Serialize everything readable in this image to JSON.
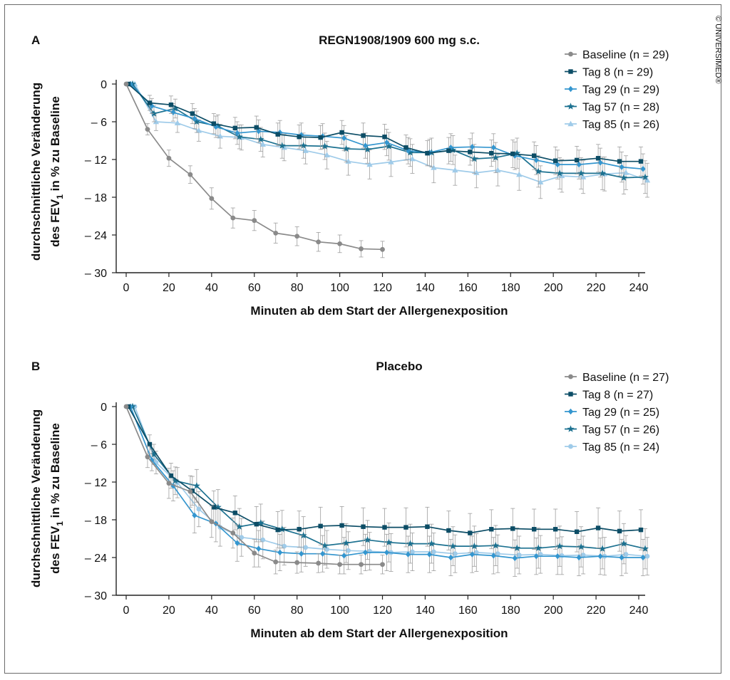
{
  "copyright": "© UNIVERSIMED®",
  "styles": {
    "colors": {
      "baseline": "#8a8a8a",
      "tag8": "#0c4d66",
      "tag29": "#3496cf",
      "tag57": "#1c7190",
      "tag85": "#9fcbe9",
      "error": "#9a9a9a",
      "axis": "#222222"
    }
  },
  "chart_data": [
    {
      "type": "line",
      "panel_label": "A",
      "title": "REGN1908/1909 600 mg s.c.",
      "xlabel": "Minuten ab dem Start der Allergenexposition",
      "ylabel_line1": "durchschnittliche Veränderung",
      "ylabel_line2_pre": "des FEV",
      "ylabel_line2_sub": "1",
      "ylabel_line2_post": " in % zu Baseline",
      "xlim": [
        0,
        242
      ],
      "ylim": [
        -30,
        0
      ],
      "xticks": [
        0,
        20,
        40,
        60,
        80,
        100,
        120,
        140,
        160,
        180,
        200,
        220,
        240
      ],
      "yticks": [
        0,
        -6,
        -12,
        -18,
        -24,
        -30
      ],
      "ytick_labels": [
        "0",
        "– 6",
        "– 12",
        "– 18",
        "– 24",
        "– 30"
      ],
      "legend_position": "top-right",
      "series": [
        {
          "name": "Baseline (n = 29)",
          "color_key": "baseline",
          "marker": "circle",
          "x": [
            0,
            10,
            20,
            30,
            40,
            50,
            60,
            70,
            80,
            90,
            100,
            110,
            120
          ],
          "y": [
            0,
            -7.2,
            -11.8,
            -14.4,
            -18.2,
            -21.3,
            -21.7,
            -23.7,
            -24.2,
            -25.1,
            -25.4,
            -26.2,
            -26.3
          ],
          "err": [
            0,
            0.9,
            1.3,
            1.4,
            1.7,
            1.6,
            1.6,
            1.6,
            1.5,
            1.5,
            1.4,
            1.3,
            1.3
          ]
        },
        {
          "name": "Tag 8 (n = 29)",
          "color_key": "tag8",
          "marker": "square",
          "x": [
            1,
            11,
            21,
            31,
            41,
            51,
            61,
            71,
            81,
            91,
            101,
            111,
            121,
            131,
            141,
            151,
            161,
            171,
            181,
            191,
            201,
            211,
            221,
            231,
            241
          ],
          "y": [
            0,
            -3.0,
            -3.3,
            -4.7,
            -6.3,
            -7.0,
            -6.9,
            -8.0,
            -8.4,
            -8.5,
            -7.7,
            -8.2,
            -8.4,
            -10.1,
            -11.0,
            -10.6,
            -10.8,
            -11.0,
            -11.1,
            -11.4,
            -12.2,
            -12.1,
            -11.8,
            -12.3,
            -12.3
          ],
          "err": [
            0,
            1.2,
            1.4,
            1.6,
            1.6,
            1.7,
            1.8,
            1.8,
            1.9,
            1.9,
            1.9,
            2.0,
            2.0,
            2.0,
            2.0,
            2.1,
            2.1,
            2.1,
            2.2,
            2.2,
            2.2,
            2.2,
            2.2,
            2.3,
            2.3
          ]
        },
        {
          "name": "Tag 29 (n = 29)",
          "color_key": "tag29",
          "marker": "diamond",
          "x": [
            2,
            12,
            22,
            32,
            42,
            52,
            62,
            72,
            82,
            92,
            102,
            112,
            122,
            132,
            142,
            152,
            162,
            172,
            182,
            192,
            202,
            212,
            222,
            232,
            242
          ],
          "y": [
            0,
            -3.5,
            -4.5,
            -5.5,
            -6.8,
            -7.8,
            -7.5,
            -7.7,
            -8.1,
            -8.3,
            -8.6,
            -9.8,
            -9.3,
            -10.6,
            -10.9,
            -10.1,
            -10.0,
            -10.1,
            -11.4,
            -12.1,
            -12.8,
            -12.8,
            -12.5,
            -13.2,
            -13.5
          ],
          "err": [
            0,
            1.2,
            1.4,
            1.6,
            1.7,
            1.8,
            1.8,
            1.9,
            1.9,
            2.0,
            2.0,
            2.0,
            2.1,
            2.1,
            2.1,
            2.2,
            2.2,
            2.2,
            2.2,
            2.3,
            2.3,
            2.3,
            2.3,
            2.4,
            2.4
          ]
        },
        {
          "name": "Tag 57 (n = 28)",
          "color_key": "tag57",
          "marker": "star",
          "x": [
            3,
            13,
            23,
            33,
            43,
            53,
            63,
            73,
            83,
            93,
            103,
            113,
            123,
            133,
            143,
            153,
            163,
            173,
            183,
            193,
            203,
            213,
            223,
            233,
            243
          ],
          "y": [
            0,
            -4.7,
            -3.9,
            -6.0,
            -6.7,
            -8.4,
            -8.8,
            -9.8,
            -9.8,
            -9.9,
            -10.3,
            -10.4,
            -9.9,
            -10.9,
            -10.9,
            -10.5,
            -11.9,
            -11.7,
            -11.0,
            -13.9,
            -14.2,
            -14.2,
            -14.2,
            -14.9,
            -14.8
          ],
          "err": [
            0,
            1.3,
            1.5,
            1.7,
            1.8,
            1.9,
            1.9,
            2.0,
            2.0,
            2.1,
            2.1,
            2.2,
            2.2,
            2.2,
            2.3,
            2.3,
            2.3,
            2.4,
            2.4,
            2.5,
            2.5,
            2.5,
            2.6,
            2.6,
            2.6
          ]
        },
        {
          "name": "Tag 85 (n = 26)",
          "color_key": "tag85",
          "marker": "triangle",
          "x": [
            4,
            14,
            24,
            34,
            44,
            54,
            64,
            74,
            84,
            94,
            104,
            114,
            124,
            134,
            144,
            154,
            164,
            174,
            184,
            194,
            204,
            214,
            224,
            234,
            244
          ],
          "y": [
            0,
            -6.0,
            -6.2,
            -7.4,
            -8.3,
            -8.5,
            -9.6,
            -10.1,
            -10.6,
            -11.3,
            -12.3,
            -12.8,
            -12.4,
            -11.9,
            -13.3,
            -13.7,
            -14.1,
            -13.7,
            -14.4,
            -15.6,
            -14.6,
            -14.8,
            -14.3,
            -14.1,
            -15.3
          ],
          "err": [
            0,
            1.4,
            1.5,
            1.7,
            1.9,
            2.0,
            2.0,
            2.1,
            2.1,
            2.2,
            2.2,
            2.3,
            2.3,
            2.3,
            2.4,
            2.4,
            2.4,
            2.5,
            2.5,
            2.6,
            2.6,
            2.6,
            2.7,
            2.7,
            2.7
          ]
        }
      ]
    },
    {
      "type": "line",
      "panel_label": "B",
      "title": "Placebo",
      "xlabel": "Minuten ab dem Start der Allergenexposition",
      "ylabel_line1": "durchschnittliche Veränderung",
      "ylabel_line2_pre": "des FEV",
      "ylabel_line2_sub": "1",
      "ylabel_line2_post": " in % zu Baseline",
      "xlim": [
        0,
        242
      ],
      "ylim": [
        -30,
        0
      ],
      "xticks": [
        0,
        20,
        40,
        60,
        80,
        100,
        120,
        140,
        160,
        180,
        200,
        220,
        240
      ],
      "yticks": [
        0,
        -6,
        -12,
        -18,
        -24,
        -30
      ],
      "ytick_labels": [
        "0",
        "– 6",
        "– 12",
        "– 18",
        "– 24",
        "– 30"
      ],
      "legend_position": "top-right",
      "series": [
        {
          "name": "Baseline (n = 27)",
          "color_key": "baseline",
          "marker": "circle",
          "x": [
            0,
            10,
            20,
            30,
            40,
            50,
            60,
            70,
            80,
            90,
            100,
            110,
            120
          ],
          "y": [
            0,
            -8.0,
            -12.2,
            -13.5,
            -18.3,
            -20.1,
            -23.3,
            -24.7,
            -24.8,
            -24.9,
            -25.1,
            -25.1,
            -25.1
          ],
          "err": [
            0,
            1.7,
            2.4,
            2.5,
            2.5,
            2.4,
            2.2,
            1.9,
            1.7,
            1.5,
            1.5,
            1.5,
            1.5
          ]
        },
        {
          "name": "Tag 8 (n = 27)",
          "color_key": "tag8",
          "marker": "square",
          "x": [
            1,
            11,
            21,
            31,
            41,
            51,
            61,
            71,
            81,
            91,
            101,
            111,
            121,
            131,
            141,
            151,
            161,
            171,
            181,
            191,
            201,
            211,
            221,
            231,
            241
          ],
          "y": [
            0,
            -6.0,
            -11.0,
            -13.4,
            -16.0,
            -16.9,
            -18.7,
            -19.6,
            -19.5,
            -19.0,
            -18.9,
            -19.1,
            -19.2,
            -19.2,
            -19.1,
            -19.7,
            -20.1,
            -19.5,
            -19.4,
            -19.5,
            -19.5,
            -19.9,
            -19.3,
            -19.8,
            -19.6
          ],
          "err": [
            0,
            1.5,
            2.0,
            2.3,
            2.6,
            2.7,
            2.8,
            2.9,
            2.9,
            3.0,
            3.0,
            3.0,
            3.0,
            3.1,
            3.1,
            3.1,
            3.1,
            3.1,
            3.2,
            3.2,
            3.2,
            3.2,
            3.2,
            3.2,
            3.2
          ]
        },
        {
          "name": "Tag 29 (n = 25)",
          "color_key": "tag29",
          "marker": "diamond",
          "x": [
            2,
            12,
            22,
            32,
            42,
            52,
            62,
            72,
            82,
            92,
            102,
            112,
            122,
            132,
            142,
            152,
            162,
            172,
            182,
            192,
            202,
            212,
            222,
            232,
            242
          ],
          "y": [
            0,
            -8.5,
            -12.6,
            -17.3,
            -18.6,
            -21.7,
            -22.6,
            -23.2,
            -23.4,
            -23.4,
            -23.7,
            -23.2,
            -23.2,
            -23.5,
            -23.5,
            -24.0,
            -23.5,
            -23.7,
            -24.1,
            -23.8,
            -23.8,
            -24.0,
            -23.8,
            -24.0,
            -24.0
          ],
          "err": [
            0,
            1.7,
            2.4,
            2.8,
            2.9,
            2.9,
            2.9,
            2.9,
            2.9,
            2.9,
            2.9,
            2.9,
            2.9,
            2.9,
            2.9,
            2.9,
            2.9,
            2.9,
            2.9,
            2.9,
            2.9,
            2.9,
            2.9,
            2.9,
            2.9
          ]
        },
        {
          "name": "Tag 57 (n = 26)",
          "color_key": "tag57",
          "marker": "star",
          "x": [
            3,
            13,
            23,
            33,
            43,
            53,
            63,
            73,
            83,
            93,
            103,
            113,
            123,
            133,
            143,
            153,
            163,
            173,
            183,
            193,
            203,
            213,
            223,
            233,
            243
          ],
          "y": [
            0,
            -7.6,
            -11.8,
            -12.6,
            -16.0,
            -19.1,
            -18.5,
            -19.5,
            -20.5,
            -22.1,
            -21.7,
            -21.2,
            -21.6,
            -21.8,
            -21.8,
            -22.2,
            -22.2,
            -22.1,
            -22.5,
            -22.5,
            -22.2,
            -22.3,
            -22.6,
            -21.8,
            -22.6
          ],
          "err": [
            0,
            1.6,
            2.2,
            2.6,
            2.8,
            2.9,
            3.0,
            3.0,
            3.0,
            3.1,
            3.1,
            3.1,
            3.1,
            3.1,
            3.1,
            3.1,
            3.2,
            3.2,
            3.2,
            3.2,
            3.2,
            3.2,
            3.2,
            3.2,
            3.2
          ]
        },
        {
          "name": "Tag 85 (n = 24)",
          "color_key": "tag85",
          "marker": "circle",
          "x": [
            4,
            14,
            24,
            34,
            44,
            54,
            64,
            74,
            84,
            94,
            104,
            114,
            124,
            134,
            144,
            154,
            164,
            174,
            184,
            194,
            204,
            214,
            224,
            234,
            244
          ],
          "y": [
            0,
            -8.9,
            -12.1,
            -16.3,
            -19.2,
            -20.8,
            -21.2,
            -22.2,
            -22.4,
            -22.7,
            -22.9,
            -23.0,
            -23.2,
            -23.1,
            -23.1,
            -23.4,
            -23.2,
            -23.4,
            -23.6,
            -23.5,
            -23.7,
            -23.6,
            -23.8,
            -23.5,
            -23.8
          ],
          "err": [
            0,
            1.8,
            2.4,
            2.8,
            3.0,
            3.0,
            3.0,
            3.0,
            3.0,
            3.0,
            3.0,
            3.0,
            3.0,
            3.0,
            3.0,
            3.0,
            3.0,
            3.0,
            3.0,
            3.0,
            3.0,
            3.0,
            3.0,
            3.0,
            3.0
          ]
        }
      ]
    }
  ]
}
